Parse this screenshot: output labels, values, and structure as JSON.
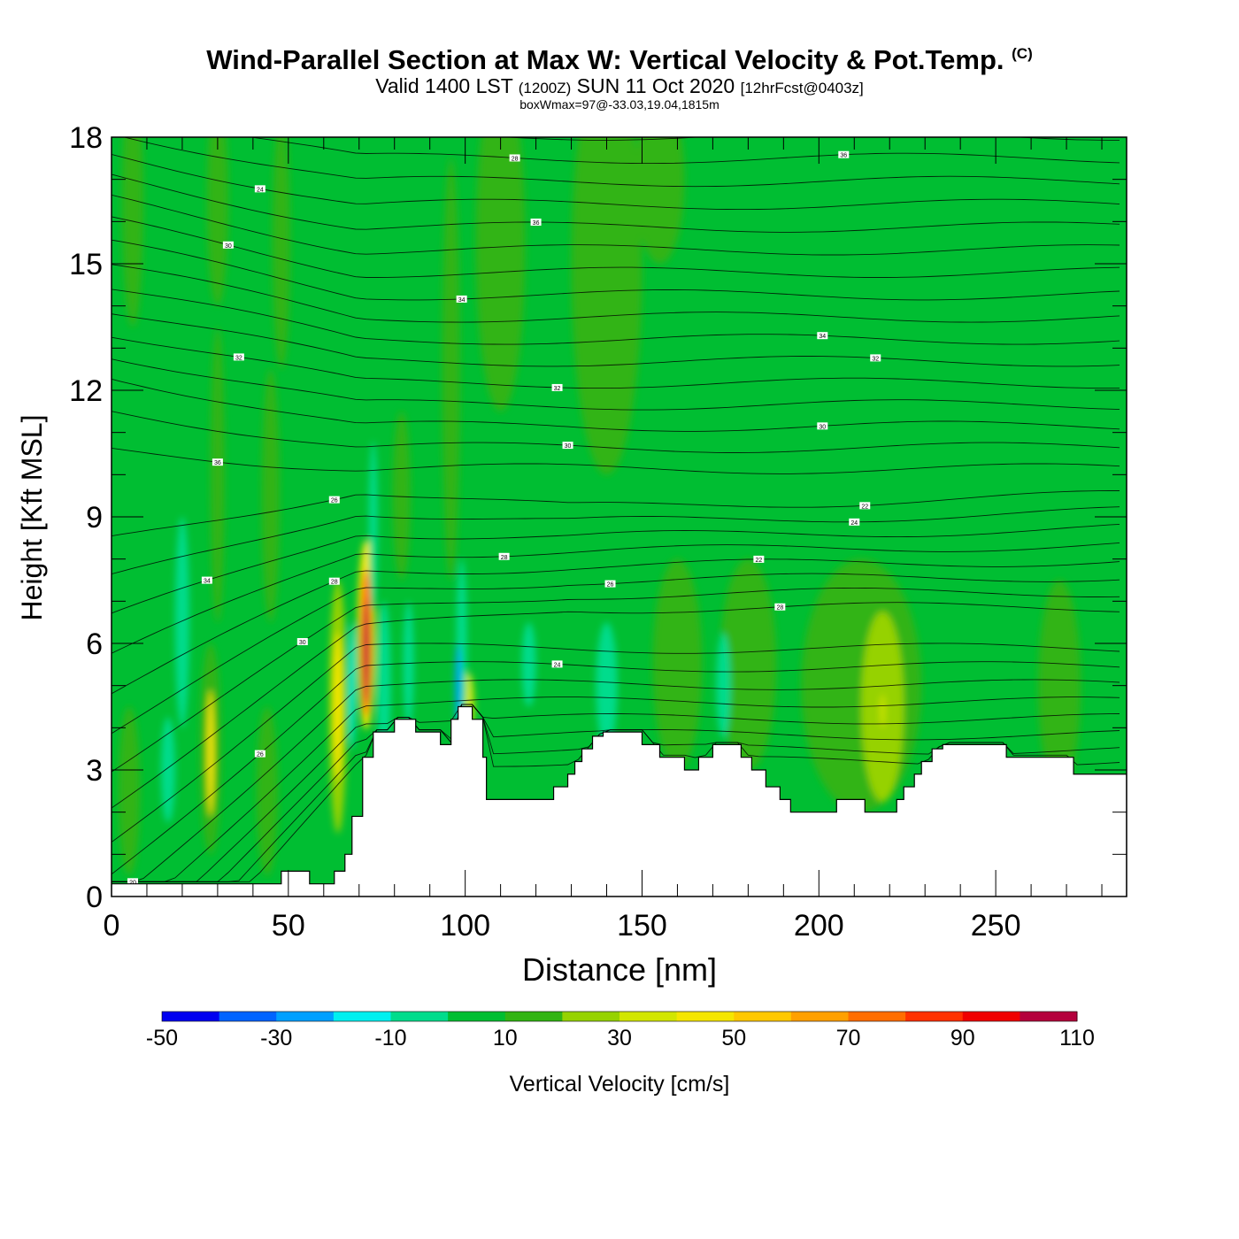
{
  "header": {
    "title": "Wind-Parallel Section at Max W: Vertical Velocity & Pot.Temp.",
    "copyright_mark": "(C)",
    "subtitle_prefix": "Valid 1400 LST",
    "subtitle_zulu": "(1200Z)",
    "subtitle_date": "SUN 11 Oct 2020",
    "subtitle_forecast": "[12hrFcst@0403z]",
    "box_info": "boxWmax=97@-33.03,19.04,1815m"
  },
  "chart_data": {
    "type": "heatmap",
    "title": "Wind-Parallel Section at Max W: Vertical Velocity & Pot.Temp.",
    "xlabel": "Distance [nm]",
    "ylabel": "Height [Kft MSL]",
    "xlim": [
      0,
      287
    ],
    "ylim": [
      0,
      18
    ],
    "x_ticks": [
      0,
      50,
      100,
      150,
      200,
      250
    ],
    "y_ticks": [
      0,
      3,
      6,
      9,
      12,
      15,
      18
    ],
    "x_minor_step": 10,
    "y_minor_step": 1,
    "background_value_range": "0 to 10 cm/s",
    "terrain_heights_kft": [
      [
        0,
        0.3
      ],
      [
        48,
        0.3
      ],
      [
        48,
        0.6
      ],
      [
        56,
        0.6
      ],
      [
        56,
        0.3
      ],
      [
        63,
        0.3
      ],
      [
        63,
        0.6
      ],
      [
        66,
        0.6
      ],
      [
        66,
        1.0
      ],
      [
        68,
        1.0
      ],
      [
        68,
        1.9
      ],
      [
        71,
        1.9
      ],
      [
        71,
        3.3
      ],
      [
        74,
        3.3
      ],
      [
        74,
        3.9
      ],
      [
        80,
        3.9
      ],
      [
        80,
        4.2
      ],
      [
        86,
        4.2
      ],
      [
        86,
        3.9
      ],
      [
        93,
        3.9
      ],
      [
        93,
        3.6
      ],
      [
        96,
        3.6
      ],
      [
        96,
        4.2
      ],
      [
        98,
        4.2
      ],
      [
        98,
        4.5
      ],
      [
        102,
        4.5
      ],
      [
        102,
        4.2
      ],
      [
        105,
        4.2
      ],
      [
        105,
        3.3
      ],
      [
        106,
        3.3
      ],
      [
        106,
        2.3
      ],
      [
        125,
        2.3
      ],
      [
        125,
        2.6
      ],
      [
        129,
        2.6
      ],
      [
        129,
        2.9
      ],
      [
        131,
        2.9
      ],
      [
        131,
        3.2
      ],
      [
        133,
        3.2
      ],
      [
        133,
        3.5
      ],
      [
        136,
        3.5
      ],
      [
        136,
        3.8
      ],
      [
        139,
        3.8
      ],
      [
        139,
        3.9
      ],
      [
        150,
        3.9
      ],
      [
        150,
        3.6
      ],
      [
        155,
        3.6
      ],
      [
        155,
        3.3
      ],
      [
        162,
        3.3
      ],
      [
        162,
        3.0
      ],
      [
        166,
        3.0
      ],
      [
        166,
        3.3
      ],
      [
        170,
        3.3
      ],
      [
        170,
        3.6
      ],
      [
        178,
        3.6
      ],
      [
        178,
        3.3
      ],
      [
        181,
        3.3
      ],
      [
        181,
        3.0
      ],
      [
        185,
        3.0
      ],
      [
        185,
        2.6
      ],
      [
        189,
        2.6
      ],
      [
        189,
        2.3
      ],
      [
        192,
        2.3
      ],
      [
        192,
        2.0
      ],
      [
        205,
        2.0
      ],
      [
        205,
        2.3
      ],
      [
        213,
        2.3
      ],
      [
        213,
        2.0
      ],
      [
        222,
        2.0
      ],
      [
        222,
        2.3
      ],
      [
        224,
        2.3
      ],
      [
        224,
        2.6
      ],
      [
        227,
        2.6
      ],
      [
        227,
        2.9
      ],
      [
        229,
        2.9
      ],
      [
        229,
        3.2
      ],
      [
        232,
        3.2
      ],
      [
        232,
        3.5
      ],
      [
        235,
        3.5
      ],
      [
        235,
        3.6
      ],
      [
        253,
        3.6
      ],
      [
        253,
        3.3
      ],
      [
        272,
        3.3
      ],
      [
        272,
        2.9
      ],
      [
        287,
        2.9
      ]
    ],
    "vertical_velocity_features": [
      {
        "x": 6,
        "y": 16.5,
        "w": 6,
        "h": 6,
        "value": 10
      },
      {
        "x": 30,
        "y": 16.5,
        "w": 6,
        "h": 5,
        "value": 10
      },
      {
        "x": 48,
        "y": 15.5,
        "w": 5,
        "h": 6,
        "value": 10
      },
      {
        "x": 110,
        "y": 15.5,
        "w": 14,
        "h": 8,
        "value": 10
      },
      {
        "x": 140,
        "y": 15.0,
        "w": 20,
        "h": 10,
        "value": 10
      },
      {
        "x": 155,
        "y": 17.0,
        "w": 14,
        "h": 4,
        "value": 10
      },
      {
        "x": 96,
        "y": 12.5,
        "w": 5,
        "h": 10,
        "value": 10
      },
      {
        "x": 30,
        "y": 10.0,
        "w": 4,
        "h": 7,
        "value": 10
      },
      {
        "x": 45,
        "y": 9.5,
        "w": 5,
        "h": 6,
        "value": 10
      },
      {
        "x": 82,
        "y": 9.5,
        "w": 5,
        "h": 4,
        "value": 10
      },
      {
        "x": 160,
        "y": 5.5,
        "w": 14,
        "h": 5,
        "value": 10
      },
      {
        "x": 180,
        "y": 5.5,
        "w": 16,
        "h": 5,
        "value": 10
      },
      {
        "x": 212,
        "y": 5.0,
        "w": 34,
        "h": 6,
        "value": 10
      },
      {
        "x": 268,
        "y": 5.0,
        "w": 12,
        "h": 5,
        "value": 10
      },
      {
        "x": 5,
        "y": 2.5,
        "w": 6,
        "h": 4,
        "value": 10
      },
      {
        "x": 44,
        "y": 2.5,
        "w": 6,
        "h": 4,
        "value": 10
      },
      {
        "x": 218,
        "y": 4.5,
        "w": 12,
        "h": 4.5,
        "value": 20
      },
      {
        "x": 218,
        "y": 4.4,
        "w": 1.2,
        "h": 0.8,
        "value": 30
      },
      {
        "x": 28,
        "y": 3.5,
        "w": 6,
        "h": 5,
        "value": 10
      },
      {
        "x": 28,
        "y": 3.4,
        "w": 2,
        "h": 3,
        "value": 40
      },
      {
        "x": 64,
        "y": 4.5,
        "w": 5,
        "h": 6,
        "value": 20
      },
      {
        "x": 64,
        "y": 4.5,
        "w": 2.5,
        "h": 3.5,
        "value": 40
      },
      {
        "x": 72,
        "y": 6.2,
        "w": 5,
        "h": 4.5,
        "value": 40
      },
      {
        "x": 72,
        "y": 6.0,
        "w": 3.2,
        "h": 3.5,
        "value": 70
      },
      {
        "x": 72,
        "y": 5.8,
        "w": 1.6,
        "h": 2.5,
        "value": 100
      },
      {
        "x": 101,
        "y": 4.6,
        "w": 3,
        "h": 1.4,
        "value": 30
      },
      {
        "x": 20,
        "y": 6.5,
        "w": 4,
        "h": 5,
        "value": -10
      },
      {
        "x": 16,
        "y": 3.0,
        "w": 4,
        "h": 2.5,
        "value": -10
      },
      {
        "x": 77,
        "y": 5.0,
        "w": 4,
        "h": 4,
        "value": -10
      },
      {
        "x": 84,
        "y": 5.5,
        "w": 3,
        "h": 3,
        "value": -10
      },
      {
        "x": 74,
        "y": 8.8,
        "w": 2.5,
        "h": 4,
        "value": -10
      },
      {
        "x": 99,
        "y": 6.0,
        "w": 3,
        "h": 4,
        "value": -10
      },
      {
        "x": 98,
        "y": 5.0,
        "w": 1.6,
        "h": 2,
        "value": -30
      },
      {
        "x": 68,
        "y": 5.0,
        "w": 1.6,
        "h": 3,
        "value": -20
      },
      {
        "x": 140,
        "y": 5.0,
        "w": 6,
        "h": 3,
        "value": -10
      },
      {
        "x": 173,
        "y": 5.0,
        "w": 4,
        "h": 2.5,
        "value": -10
      },
      {
        "x": 118,
        "y": 5.5,
        "w": 4,
        "h": 2,
        "value": -10
      }
    ],
    "isentrope_levels": 33,
    "isentrope_labels": [
      "26",
      "30",
      "34",
      "36",
      "32",
      "30",
      "24",
      "28",
      "26",
      "28",
      "30",
      "32",
      "34",
      "36",
      "28",
      "26",
      "22",
      "24",
      "22",
      "30",
      "34",
      "32",
      "36",
      "28",
      "26",
      "24",
      "20"
    ],
    "colorbar": {
      "label": "Vertical Velocity [cm/s]",
      "bounds": [
        -50,
        -40,
        -30,
        -20,
        -10,
        0,
        10,
        20,
        30,
        40,
        50,
        60,
        70,
        80,
        90,
        100,
        110
      ],
      "colors": [
        "#0000f0",
        "#0064ff",
        "#00a0ff",
        "#00f0f0",
        "#00dc8c",
        "#00be32",
        "#32b414",
        "#96d200",
        "#d2e600",
        "#f5e600",
        "#ffc800",
        "#ffa000",
        "#ff6e00",
        "#ff3200",
        "#f00000",
        "#b4003c"
      ],
      "tick_labels": [
        "-50",
        "-30",
        "-10",
        "10",
        "30",
        "50",
        "70",
        "90",
        "110"
      ]
    }
  }
}
